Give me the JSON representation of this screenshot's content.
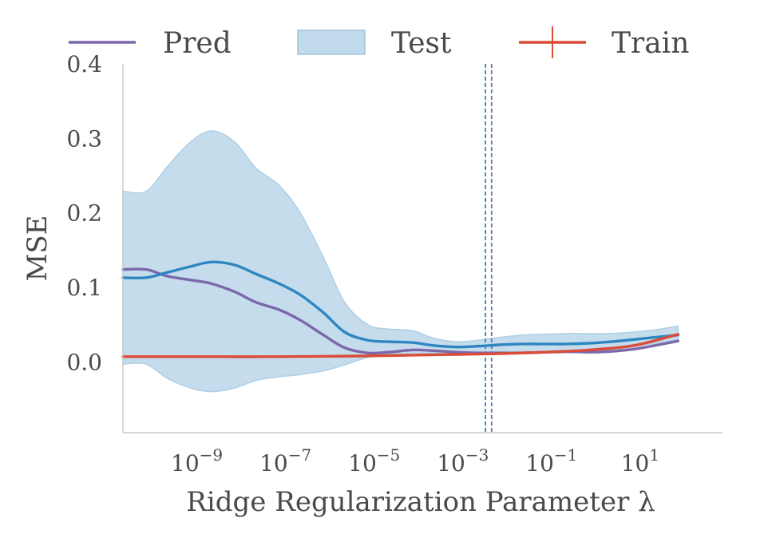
{
  "chart_data": {
    "type": "line",
    "xscale": "log",
    "xlabel": "Ridge Regularization Parameter λ",
    "ylabel": "MSE",
    "xlim": [
      3e-11,
      1000
    ],
    "ylim": [
      -0.095,
      0.4
    ],
    "xticks": [
      {
        "value": 1e-09,
        "base": "10",
        "exp": "−9"
      },
      {
        "value": 1e-07,
        "base": "10",
        "exp": "−7"
      },
      {
        "value": 1e-05,
        "base": "10",
        "exp": "−5"
      },
      {
        "value": 0.001,
        "base": "10",
        "exp": "−3"
      },
      {
        "value": 0.1,
        "base": "10",
        "exp": "−1"
      },
      {
        "value": 10,
        "base": "10",
        "exp": "1"
      }
    ],
    "yticks": [
      {
        "value": 0.0,
        "label": "0.0"
      },
      {
        "value": 0.1,
        "label": "0.1"
      },
      {
        "value": 0.2,
        "label": "0.2"
      },
      {
        "value": 0.3,
        "label": "0.3"
      },
      {
        "value": 0.4,
        "label": "0.4"
      }
    ],
    "legend": {
      "position": "top",
      "entries": [
        {
          "label": "Pred",
          "kind": "line",
          "color": "#7b68aa"
        },
        {
          "label": "Test",
          "kind": "band",
          "color": "#aecfe6"
        },
        {
          "label": "Train",
          "kind": "errorline",
          "color": "#dc4b37"
        }
      ]
    },
    "series": [
      {
        "name": "Pred",
        "style": "line",
        "color": "#7b68aa",
        "x": [
          3e-11,
          1e-10,
          3e-10,
          1e-09,
          3e-09,
          1e-08,
          3e-08,
          1e-07,
          3e-07,
          1e-06,
          3e-06,
          1e-05,
          3e-05,
          0.0001,
          0.0003,
          0.001,
          0.003,
          0.01,
          0.03,
          0.1,
          0.3,
          1,
          3,
          10,
          30,
          100
        ],
        "y": [
          0.124,
          0.124,
          0.115,
          0.11,
          0.105,
          0.094,
          0.08,
          0.07,
          0.056,
          0.036,
          0.019,
          0.012,
          0.013,
          0.016,
          0.015,
          0.013,
          0.012,
          0.012,
          0.012,
          0.013,
          0.014,
          0.013,
          0.014,
          0.017,
          0.022,
          0.028
        ]
      },
      {
        "name": "Test",
        "style": "line-with-band",
        "color": "#2e86c1",
        "band_color": "#aecfe6",
        "x": [
          3e-11,
          1e-10,
          3e-10,
          1e-09,
          3e-09,
          1e-08,
          3e-08,
          1e-07,
          3e-07,
          1e-06,
          3e-06,
          1e-05,
          3e-05,
          0.0001,
          0.0003,
          0.001,
          0.003,
          0.01,
          0.03,
          0.1,
          0.3,
          1,
          3,
          10,
          30,
          100
        ],
        "y": [
          0.113,
          0.113,
          0.12,
          0.128,
          0.134,
          0.13,
          0.118,
          0.105,
          0.09,
          0.066,
          0.04,
          0.029,
          0.027,
          0.026,
          0.022,
          0.02,
          0.021,
          0.023,
          0.024,
          0.024,
          0.024,
          0.025,
          0.027,
          0.03,
          0.033,
          0.036
        ],
        "upper": [
          0.229,
          0.229,
          0.262,
          0.295,
          0.31,
          0.295,
          0.26,
          0.237,
          0.2,
          0.14,
          0.08,
          0.05,
          0.044,
          0.042,
          0.032,
          0.027,
          0.029,
          0.033,
          0.036,
          0.037,
          0.038,
          0.038,
          0.038,
          0.04,
          0.043,
          0.048
        ],
        "lower": [
          -0.003,
          -0.003,
          -0.022,
          -0.035,
          -0.04,
          -0.035,
          -0.025,
          -0.02,
          -0.017,
          -0.012,
          -0.004,
          0.006,
          0.01,
          0.011,
          0.012,
          0.013,
          0.013,
          0.013,
          0.013,
          0.012,
          0.012,
          0.013,
          0.016,
          0.02,
          0.025,
          0.03
        ]
      },
      {
        "name": "Train",
        "style": "line",
        "color": "#dc4b37",
        "x": [
          3e-11,
          1e-09,
          1e-07,
          1e-05,
          0.0001,
          0.001,
          0.01,
          0.1,
          1,
          10,
          100
        ],
        "y": [
          0.007,
          0.007,
          0.007,
          0.008,
          0.009,
          0.01,
          0.011,
          0.013,
          0.016,
          0.022,
          0.037
        ]
      }
    ],
    "vlines": [
      {
        "x": 0.0045,
        "color": "#2e86c1",
        "style": "dashed"
      },
      {
        "x": 0.0062,
        "color": "#7b68aa",
        "style": "dashed"
      }
    ],
    "grid": false
  }
}
